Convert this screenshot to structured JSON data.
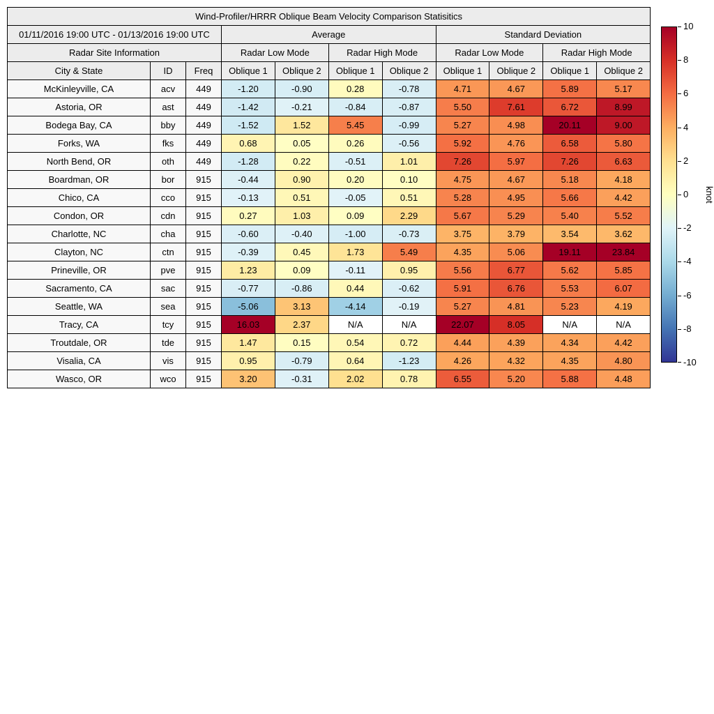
{
  "title": "Wind-Profiler/HRRR Oblique Beam Velocity Comparison Statisitics",
  "header": {
    "date_range": "01/11/2016 19:00 UTC - 01/13/2016 19:00 UTC",
    "group_average": "Average",
    "group_std": "Standard Deviation",
    "site_info": "Radar Site Information",
    "low_mode": "Radar Low Mode",
    "high_mode": "Radar High Mode",
    "col_city": "City & State",
    "col_id": "ID",
    "col_freq": "Freq",
    "oblique1": "Oblique 1",
    "oblique2": "Oblique 2"
  },
  "colorbar": {
    "label": "knot",
    "min": -10,
    "max": 10,
    "ticks": [
      "10",
      "8",
      "6",
      "4",
      "2",
      "0",
      "-2",
      "-4",
      "-6",
      "-8",
      "-10"
    ],
    "gradient_stops": [
      "#a50026",
      "#d73027",
      "#f46d43",
      "#fdae61",
      "#fee090",
      "#ffffbf",
      "#e0f3f8",
      "#abd9e9",
      "#74add1",
      "#4575b4",
      "#313695"
    ]
  },
  "colors": {
    "na_bg": "#ffffff",
    "header_bg": "#ececec",
    "label_bg": "#f8f8f8"
  },
  "scale": {
    "min": -10,
    "max": 10,
    "anchors": [
      {
        "v": -10,
        "c": "#313695"
      },
      {
        "v": -8,
        "c": "#4575b4"
      },
      {
        "v": -6,
        "c": "#74add1"
      },
      {
        "v": -4,
        "c": "#a3d3e6"
      },
      {
        "v": -2,
        "c": "#c9e7f1"
      },
      {
        "v": -0.001,
        "c": "#e3f3f8"
      },
      {
        "v": 0,
        "c": "#ffffc5"
      },
      {
        "v": 2,
        "c": "#fee090"
      },
      {
        "v": 4,
        "c": "#fdae61"
      },
      {
        "v": 6,
        "c": "#f46d43"
      },
      {
        "v": 8,
        "c": "#d73027"
      },
      {
        "v": 10,
        "c": "#a50026"
      }
    ]
  },
  "chart_data": {
    "type": "heatmap",
    "title": "Wind-Profiler/HRRR Oblique Beam Velocity Comparison Statisitics",
    "period": "01/11/2016 19:00 UTC - 01/13/2016 19:00 UTC",
    "value_unit": "knot",
    "value_range": [
      -10,
      10
    ],
    "colorbar_ticks": [
      10,
      8,
      6,
      4,
      2,
      0,
      -2,
      -4,
      -6,
      -8,
      -10
    ],
    "value_columns": [
      "Average Radar Low Mode Oblique 1",
      "Average Radar Low Mode Oblique 2",
      "Average Radar High Mode Oblique 1",
      "Average Radar High Mode Oblique 2",
      "Standard Deviation Radar Low Mode Oblique 1",
      "Standard Deviation Radar Low Mode Oblique 2",
      "Standard Deviation Radar High Mode Oblique 1",
      "Standard Deviation Radar High Mode Oblique 2"
    ],
    "rows": [
      {
        "city": "McKinleyville, CA",
        "id": "acv",
        "freq": "449",
        "values": [
          "-1.20",
          "-0.90",
          "0.28",
          "-0.78",
          "4.71",
          "4.67",
          "5.89",
          "5.17"
        ]
      },
      {
        "city": "Astoria, OR",
        "id": "ast",
        "freq": "449",
        "values": [
          "-1.42",
          "-0.21",
          "-0.84",
          "-0.87",
          "5.50",
          "7.61",
          "6.72",
          "8.99"
        ]
      },
      {
        "city": "Bodega Bay, CA",
        "id": "bby",
        "freq": "449",
        "values": [
          "-1.52",
          "1.52",
          "5.45",
          "-0.99",
          "5.27",
          "4.98",
          "20.11",
          "9.00"
        ]
      },
      {
        "city": "Forks, WA",
        "id": "fks",
        "freq": "449",
        "values": [
          "0.68",
          "0.05",
          "0.26",
          "-0.56",
          "5.92",
          "4.76",
          "6.58",
          "5.80"
        ]
      },
      {
        "city": "North Bend, OR",
        "id": "oth",
        "freq": "449",
        "values": [
          "-1.28",
          "0.22",
          "-0.51",
          "1.01",
          "7.26",
          "5.97",
          "7.26",
          "6.63"
        ]
      },
      {
        "city": "Boardman, OR",
        "id": "bor",
        "freq": "915",
        "values": [
          "-0.44",
          "0.90",
          "0.20",
          "0.10",
          "4.75",
          "4.67",
          "5.18",
          "4.18"
        ]
      },
      {
        "city": "Chico, CA",
        "id": "cco",
        "freq": "915",
        "values": [
          "-0.13",
          "0.51",
          "-0.05",
          "0.51",
          "5.28",
          "4.95",
          "5.66",
          "4.42"
        ]
      },
      {
        "city": "Condon, OR",
        "id": "cdn",
        "freq": "915",
        "values": [
          "0.27",
          "1.03",
          "0.09",
          "2.29",
          "5.67",
          "5.29",
          "5.40",
          "5.52"
        ]
      },
      {
        "city": "Charlotte, NC",
        "id": "cha",
        "freq": "915",
        "values": [
          "-0.60",
          "-0.40",
          "-1.00",
          "-0.73",
          "3.75",
          "3.79",
          "3.54",
          "3.62"
        ]
      },
      {
        "city": "Clayton, NC",
        "id": "ctn",
        "freq": "915",
        "values": [
          "-0.39",
          "0.45",
          "1.73",
          "5.49",
          "4.35",
          "5.06",
          "19.11",
          "23.84"
        ]
      },
      {
        "city": "Prineville, OR",
        "id": "pve",
        "freq": "915",
        "values": [
          "1.23",
          "0.09",
          "-0.11",
          "0.95",
          "5.56",
          "6.77",
          "5.62",
          "5.85"
        ]
      },
      {
        "city": "Sacramento, CA",
        "id": "sac",
        "freq": "915",
        "values": [
          "-0.77",
          "-0.86",
          "0.44",
          "-0.62",
          "5.91",
          "6.76",
          "5.53",
          "6.07"
        ]
      },
      {
        "city": "Seattle, WA",
        "id": "sea",
        "freq": "915",
        "values": [
          "-5.06",
          "3.13",
          "-4.14",
          "-0.19",
          "5.27",
          "4.81",
          "5.23",
          "4.19"
        ]
      },
      {
        "city": "Tracy, CA",
        "id": "tcy",
        "freq": "915",
        "values": [
          "16.03",
          "2.37",
          "N/A",
          "N/A",
          "22.07",
          "8.05",
          "N/A",
          "N/A"
        ]
      },
      {
        "city": "Troutdale, OR",
        "id": "tde",
        "freq": "915",
        "values": [
          "1.47",
          "0.15",
          "0.54",
          "0.72",
          "4.44",
          "4.39",
          "4.34",
          "4.42"
        ]
      },
      {
        "city": "Visalia, CA",
        "id": "vis",
        "freq": "915",
        "values": [
          "0.95",
          "-0.79",
          "0.64",
          "-1.23",
          "4.26",
          "4.32",
          "4.35",
          "4.80"
        ]
      },
      {
        "city": "Wasco, OR",
        "id": "wco",
        "freq": "915",
        "values": [
          "3.20",
          "-0.31",
          "2.02",
          "0.78",
          "6.55",
          "5.20",
          "5.88",
          "4.48"
        ]
      }
    ]
  }
}
